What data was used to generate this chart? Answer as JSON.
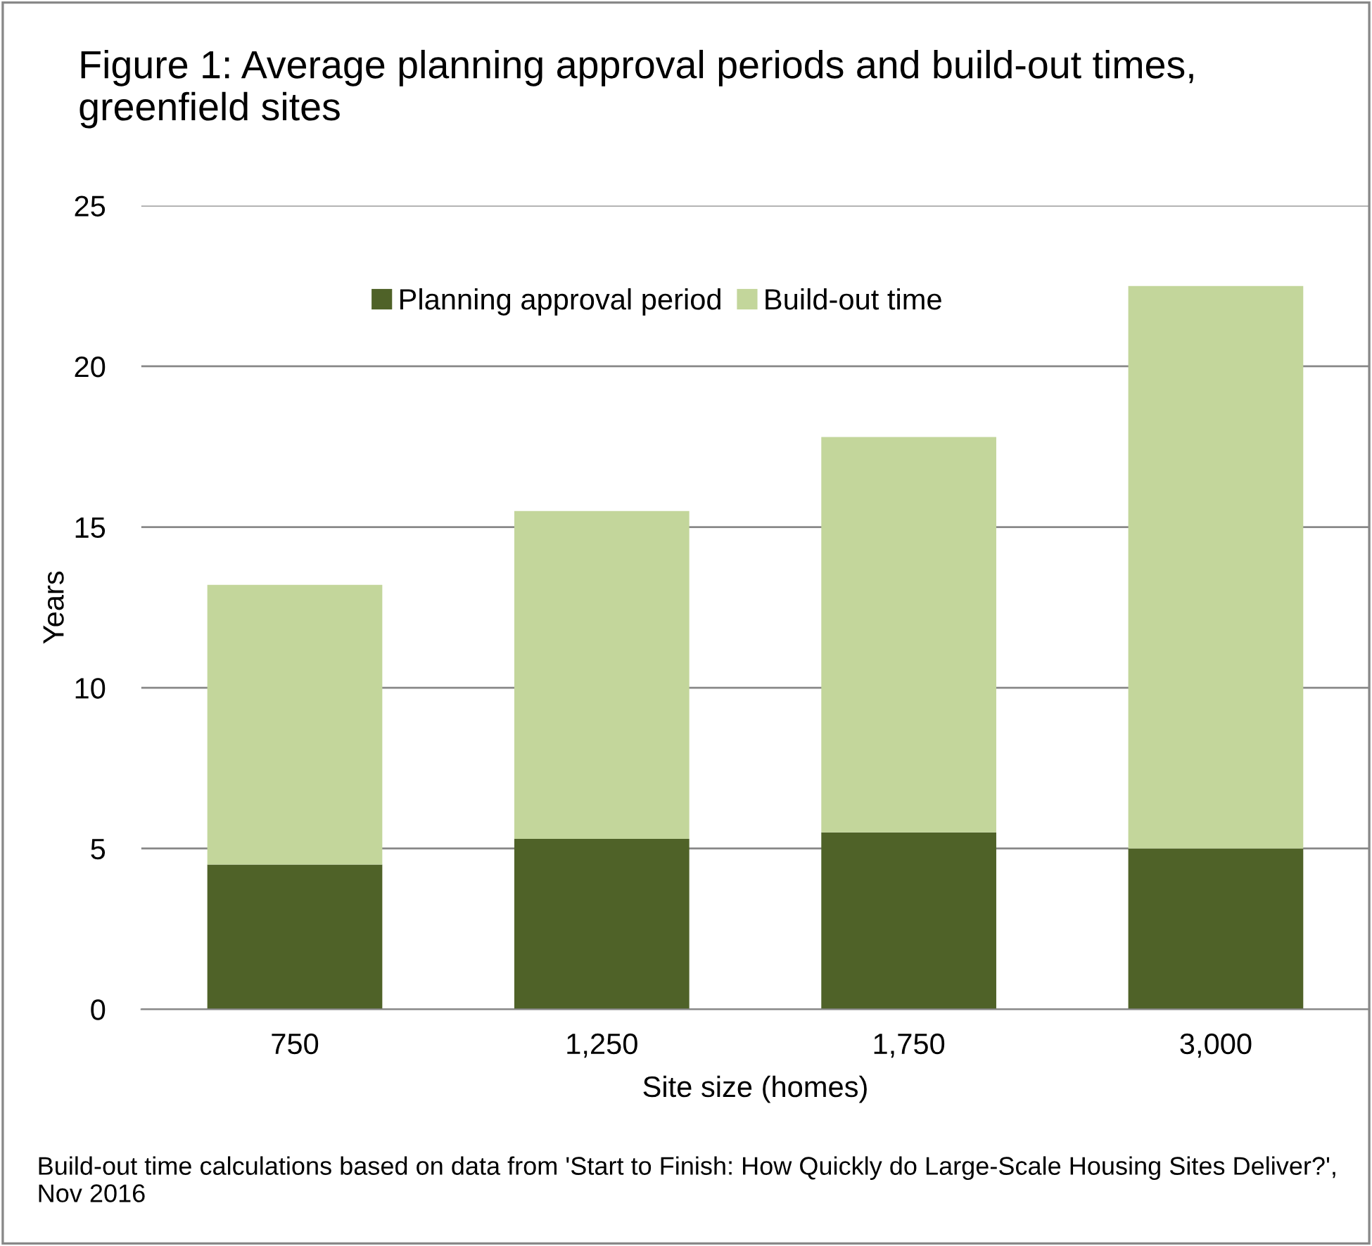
{
  "chart_data": {
    "type": "bar",
    "title": "Figure 1: Average planning approval periods and build-out times, greenfield sites",
    "xlabel": "Site size (homes)",
    "ylabel": "Years",
    "categories": [
      "750",
      "1,250",
      "1,750",
      "3,000"
    ],
    "series": [
      {
        "name": "Planning approval period",
        "color": "#4f6228",
        "values": [
          4.5,
          5.3,
          5.5,
          5.0
        ]
      },
      {
        "name": "Build-out time",
        "color": "#c3d69b",
        "values": [
          8.7,
          10.2,
          12.3,
          17.5
        ]
      }
    ],
    "stacked": true,
    "ylim": [
      0,
      25
    ],
    "yticks": [
      0,
      5,
      10,
      15,
      20,
      25
    ],
    "grid": "y",
    "legend": "top",
    "annotations": [
      "Build-out time calculations based on data from 'Start to Finish: How Quickly do Large-Scale Housing Sites Deliver?', Nov 2016"
    ]
  }
}
